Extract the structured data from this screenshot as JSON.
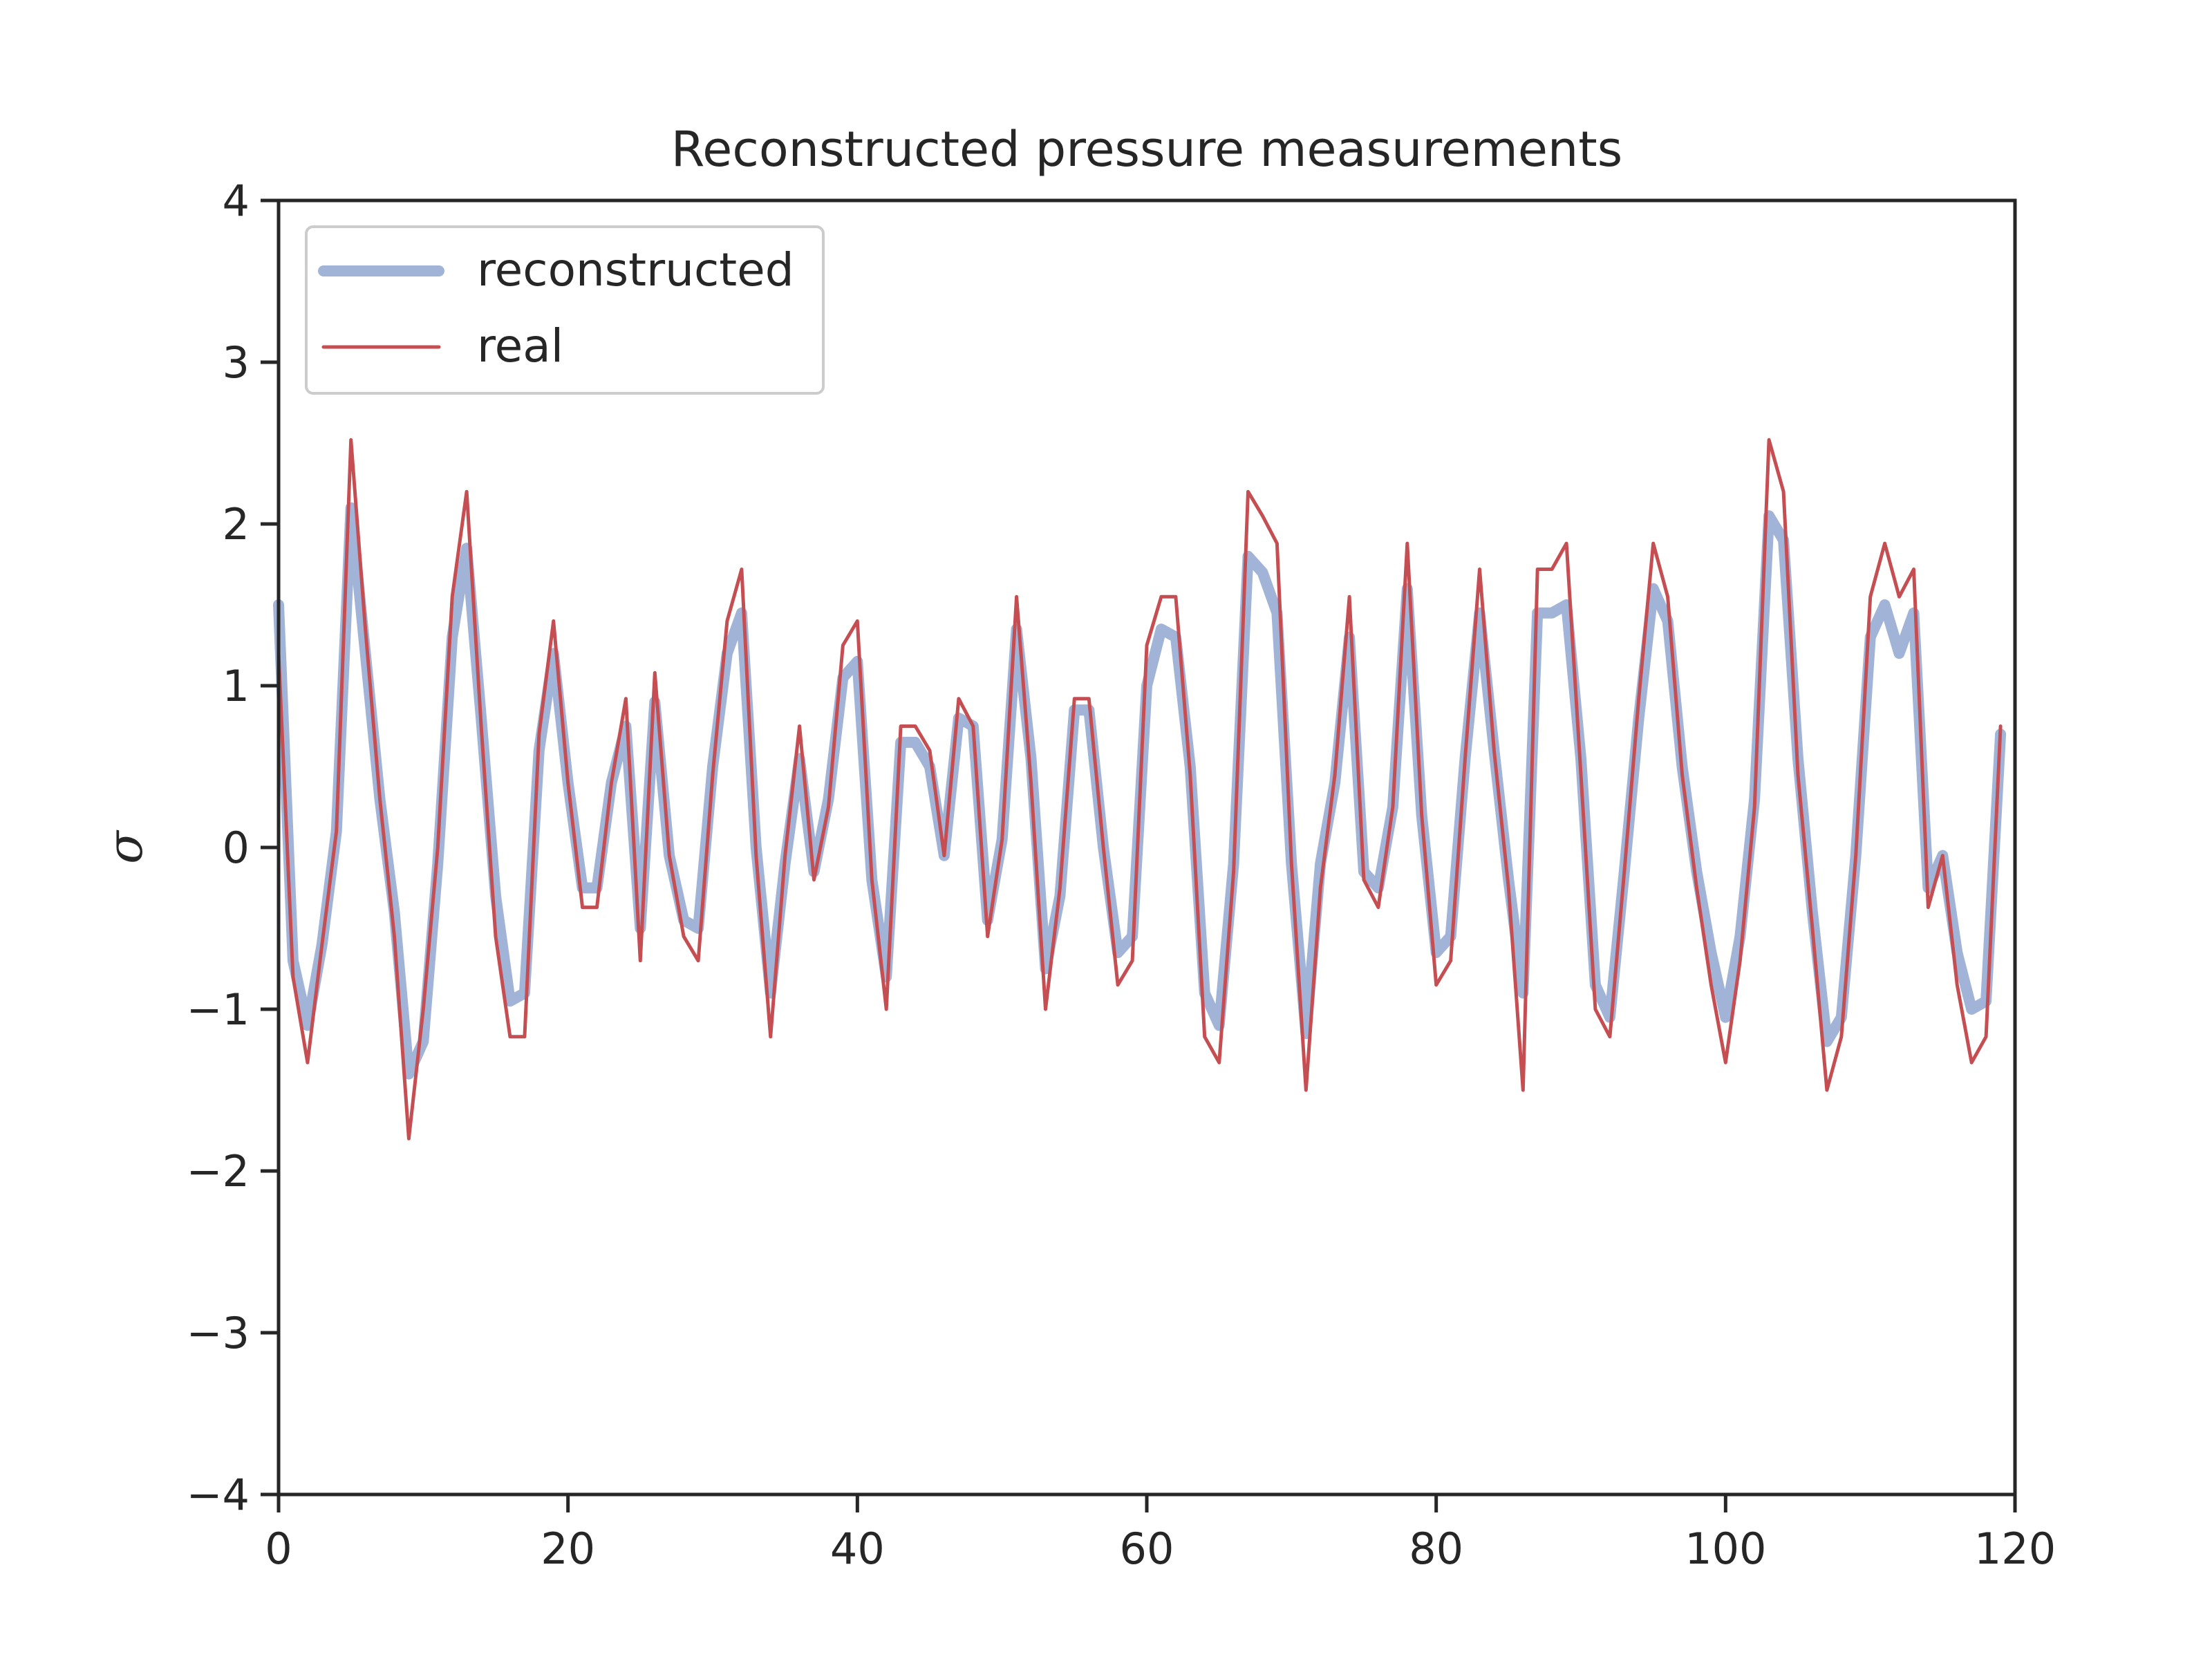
{
  "chart_data": {
    "type": "line",
    "title": "Reconstructed pressure measurements",
    "xlabel": "",
    "ylabel": "σ",
    "xlim": [
      0,
      120
    ],
    "ylim": [
      -4,
      4
    ],
    "xticks": [
      0,
      20,
      40,
      60,
      80,
      100,
      120
    ],
    "yticks": [
      -4,
      -3,
      -2,
      -1,
      0,
      1,
      2,
      3,
      4
    ],
    "xtick_labels": [
      "0",
      "20",
      "40",
      "60",
      "80",
      "100",
      "120"
    ],
    "ytick_labels": [
      "−4",
      "−3",
      "−2",
      "−1",
      "0",
      "1",
      "2",
      "3",
      "4"
    ],
    "grid": false,
    "legend_position": "top-left",
    "series": [
      {
        "name": "reconstructed",
        "color": "#a1b4d8",
        "style": "thick",
        "values": [
          1.5,
          -0.7,
          -1.1,
          -0.6,
          0.1,
          2.1,
          1.2,
          0.3,
          -0.4,
          -1.4,
          -1.2,
          -0.1,
          1.3,
          1.85,
          0.8,
          -0.3,
          -0.95,
          -0.9,
          0.6,
          1.2,
          0.4,
          -0.25,
          -0.25,
          0.4,
          0.75,
          -0.5,
          0.9,
          -0.05,
          -0.45,
          -0.5,
          0.5,
          1.2,
          1.45,
          0.0,
          -0.9,
          -0.1,
          0.55,
          -0.15,
          0.3,
          1.05,
          1.15,
          -0.2,
          -0.8,
          0.65,
          0.65,
          0.5,
          -0.05,
          0.8,
          0.75,
          -0.45,
          0.05,
          1.35,
          0.55,
          -0.75,
          -0.3,
          0.85,
          0.85,
          0.0,
          -0.65,
          -0.55,
          1.0,
          1.35,
          1.3,
          0.5,
          -0.9,
          -1.1,
          -0.1,
          1.8,
          1.7,
          1.45,
          -0.1,
          -1.15,
          -0.1,
          0.4,
          1.3,
          -0.15,
          -0.25,
          0.25,
          1.6,
          0.2,
          -0.65,
          -0.55,
          0.55,
          1.45,
          0.6,
          -0.2,
          -0.9,
          1.45,
          1.45,
          1.5,
          0.55,
          -0.85,
          -1.05,
          -0.15,
          0.8,
          1.6,
          1.4,
          0.5,
          -0.15,
          -0.65,
          -1.05,
          -0.55,
          0.3,
          2.05,
          1.9,
          0.55,
          -0.4,
          -1.2,
          -1.05,
          -0.05,
          1.3,
          1.5,
          1.2,
          1.45,
          -0.25,
          -0.05,
          -0.65,
          -1.0,
          -0.95,
          0.7
        ]
      },
      {
        "name": "real",
        "color": "#c44e52",
        "style": "thin",
        "values": [
          1.2,
          -0.8,
          -1.33,
          -0.6,
          0.1,
          2.52,
          1.35,
          0.3,
          -0.55,
          -1.8,
          -1.0,
          0.0,
          1.55,
          2.2,
          0.75,
          -0.55,
          -1.17,
          -1.17,
          0.7,
          1.4,
          0.4,
          -0.37,
          -0.37,
          0.4,
          0.92,
          -0.7,
          1.08,
          -0.05,
          -0.55,
          -0.7,
          0.45,
          1.4,
          1.72,
          -0.05,
          -1.17,
          -0.05,
          0.75,
          -0.2,
          0.25,
          1.25,
          1.4,
          -0.2,
          -1.0,
          0.75,
          0.75,
          0.6,
          -0.05,
          0.92,
          0.75,
          -0.55,
          0.05,
          1.55,
          0.4,
          -1.0,
          -0.25,
          0.92,
          0.92,
          0.0,
          -0.85,
          -0.7,
          1.25,
          1.55,
          1.55,
          0.45,
          -1.17,
          -1.33,
          -0.15,
          2.2,
          2.05,
          1.88,
          -0.1,
          -1.5,
          -0.25,
          0.45,
          1.55,
          -0.2,
          -0.37,
          0.25,
          1.88,
          0.2,
          -0.85,
          -0.7,
          0.55,
          1.72,
          0.6,
          -0.25,
          -1.5,
          1.72,
          1.72,
          1.88,
          0.45,
          -1.0,
          -1.17,
          -0.15,
          0.92,
          1.88,
          1.55,
          0.45,
          -0.25,
          -0.85,
          -1.33,
          -0.7,
          0.25,
          2.52,
          2.2,
          0.45,
          -0.5,
          -1.5,
          -1.17,
          -0.05,
          1.55,
          1.88,
          1.55,
          1.72,
          -0.37,
          -0.05,
          -0.85,
          -1.33,
          -1.17,
          0.75
        ]
      }
    ]
  }
}
